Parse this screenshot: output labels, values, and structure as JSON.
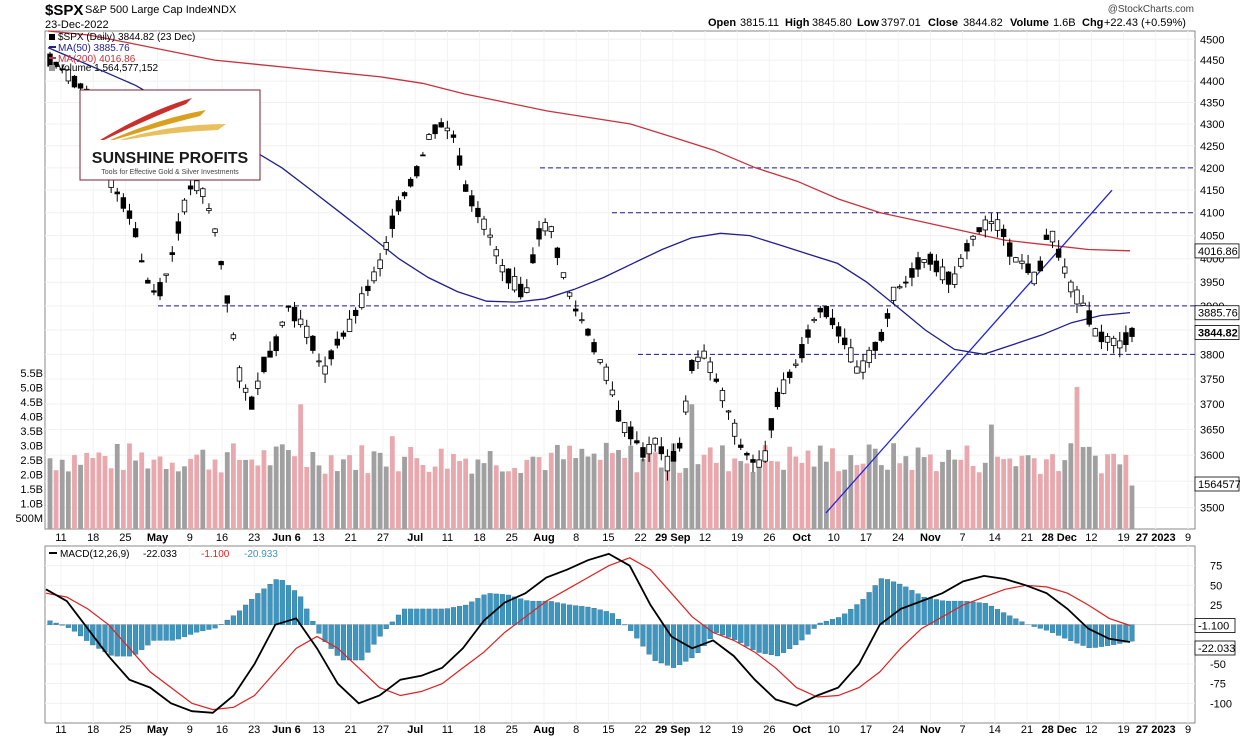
{
  "header": {
    "symbol": "$SPX",
    "name": "S&P 500 Large Cap Index",
    "exchange": "INDX",
    "date": "23-Dec-2022",
    "watermark": "@StockCharts.com",
    "open_label": "Open",
    "open": "3815.11",
    "high_label": "High",
    "high": "3845.80",
    "low_label": "Low",
    "low": "3797.01",
    "close_label": "Close",
    "close": "3844.82",
    "volume_label": "Volume",
    "volume": "1.6B",
    "chg_label": "Chg",
    "chg": "+22.43 (+0.59%)"
  },
  "legend": {
    "price": "$SPX (Daily) 3844.82 (23 Dec)",
    "ma50": "MA(50) 3885.76",
    "ma200": "MA(200) 4016.86",
    "volume": "Volume 1,564,577,152"
  },
  "logo": {
    "line1": "SUNSHINE PROFITS",
    "line2": "Tools for Effective Gold & Silver Investments"
  },
  "macd_panel": {
    "legend_label": "MACD(12,26,9)",
    "values": [
      "-22.033",
      "-1.100",
      "-20.933"
    ]
  },
  "colors": {
    "ma50": "#1f1f8f",
    "ma200": "#c8323c",
    "trendline": "#2222dd",
    "hline": "#1a1a8a",
    "vol_up": "#a0a0a0",
    "vol_down": "#e8a8ad",
    "macd_line": "#000000",
    "signal_line": "#e02020",
    "histogram": "#3c96c0"
  },
  "chart_data": [
    {
      "type": "candlestick",
      "title": "$SPX S&P 500 Large Cap Index",
      "yscale": "log",
      "ylim": [
        3460,
        4520
      ],
      "y_ticks": [
        3500,
        3550,
        3600,
        3650,
        3700,
        3750,
        3800,
        3850,
        3900,
        3950,
        4000,
        4050,
        4100,
        4150,
        4200,
        4250,
        4300,
        4350,
        4400,
        4450,
        4500
      ],
      "x_tick_labels": [
        "11",
        "18",
        "25",
        "May",
        "9",
        "16",
        "23",
        "Jun 6",
        "13",
        "21",
        "27",
        "Jul",
        "11",
        "18",
        "25",
        "Aug",
        "8",
        "15",
        "22",
        "29 Sep",
        "12",
        "19",
        "26",
        "Oct",
        "10",
        "17",
        "24",
        "Nov",
        "7",
        "14",
        "21",
        "28 Dec",
        "12",
        "19",
        "27 2023",
        "9"
      ],
      "price_tags": [
        "4016.86",
        "3885.76",
        "3844.82",
        "1564577"
      ],
      "series": [
        {
          "name": "MA(50)",
          "kind": "moving_average",
          "values": [
            4480,
            4450,
            4420,
            4390,
            4350,
            4320,
            4270,
            4240,
            4200,
            4150,
            4100,
            4050,
            4000,
            3960,
            3930,
            3910,
            3908,
            3915,
            3935,
            3960,
            3990,
            4020,
            4045,
            4055,
            4050,
            4030,
            4010,
            3990,
            3950,
            3900,
            3850,
            3810,
            3800,
            3820,
            3840,
            3865,
            3880,
            3886
          ]
        },
        {
          "name": "MA(200)",
          "kind": "moving_average",
          "values": [
            4520,
            4510,
            4490,
            4470,
            4450,
            4440,
            4430,
            4420,
            4410,
            4395,
            4370,
            4350,
            4330,
            4315,
            4300,
            4270,
            4240,
            4200,
            4170,
            4130,
            4100,
            4080,
            4060,
            4040,
            4030,
            4020,
            4017
          ]
        },
        {
          "name": "Volume",
          "kind": "bar",
          "unit": "B",
          "y_ticks": [
            "500M",
            "1.0B",
            "1.5B",
            "2.0B",
            "2.5B",
            "3.0B",
            "3.5B",
            "4.0B",
            "4.5B",
            "5.0B",
            "5.5B"
          ]
        }
      ],
      "horizontal_lines": [
        4200,
        4100,
        3900,
        3800
      ],
      "trendline": {
        "from": [
          "Oct 13",
          3490
        ],
        "to": [
          "Dec 19",
          4150
        ]
      }
    },
    {
      "type": "line",
      "title": "MACD(12,26,9)",
      "ylim": [
        -125,
        100
      ],
      "y_ticks": [
        -100,
        -75,
        -50,
        -25,
        25,
        50,
        75
      ],
      "price_tags": [
        "-1.100",
        "-22.033"
      ],
      "series": [
        {
          "name": "MACD",
          "values": [
            45,
            30,
            -5,
            -40,
            -70,
            -80,
            -100,
            -110,
            -112,
            -90,
            -50,
            0,
            8,
            -30,
            -75,
            -100,
            -90,
            -70,
            -65,
            -55,
            -30,
            5,
            28,
            40,
            60,
            70,
            82,
            90,
            75,
            25,
            -15,
            -30,
            -20,
            -40,
            -70,
            -95,
            -103,
            -90,
            -80,
            -50,
            0,
            20,
            30,
            40,
            55,
            62,
            58,
            50,
            40,
            20,
            -5,
            -18,
            -22
          ]
        },
        {
          "name": "Signal",
          "values": [
            40,
            35,
            20,
            0,
            -30,
            -60,
            -80,
            -100,
            -108,
            -105,
            -90,
            -60,
            -30,
            -15,
            -30,
            -55,
            -80,
            -90,
            -85,
            -75,
            -55,
            -35,
            -10,
            10,
            30,
            45,
            60,
            75,
            85,
            70,
            40,
            10,
            -10,
            -20,
            -35,
            -55,
            -80,
            -92,
            -90,
            -80,
            -60,
            -30,
            -5,
            10,
            25,
            35,
            45,
            50,
            48,
            40,
            25,
            8,
            -1
          ]
        },
        {
          "name": "Histogram",
          "kind": "bar",
          "values": [
            5,
            -5,
            -25,
            -40,
            -40,
            -20,
            -20,
            -10,
            -4,
            15,
            40,
            60,
            38,
            -15,
            -45,
            -45,
            -10,
            20,
            20,
            20,
            25,
            40,
            38,
            30,
            30,
            25,
            22,
            15,
            -10,
            -45,
            -55,
            -40,
            -10,
            -20,
            -35,
            -40,
            -23,
            2,
            10,
            30,
            60,
            50,
            35,
            30,
            30,
            27,
            13,
            0,
            -8,
            -20,
            -30,
            -26,
            -21
          ]
        }
      ]
    }
  ]
}
